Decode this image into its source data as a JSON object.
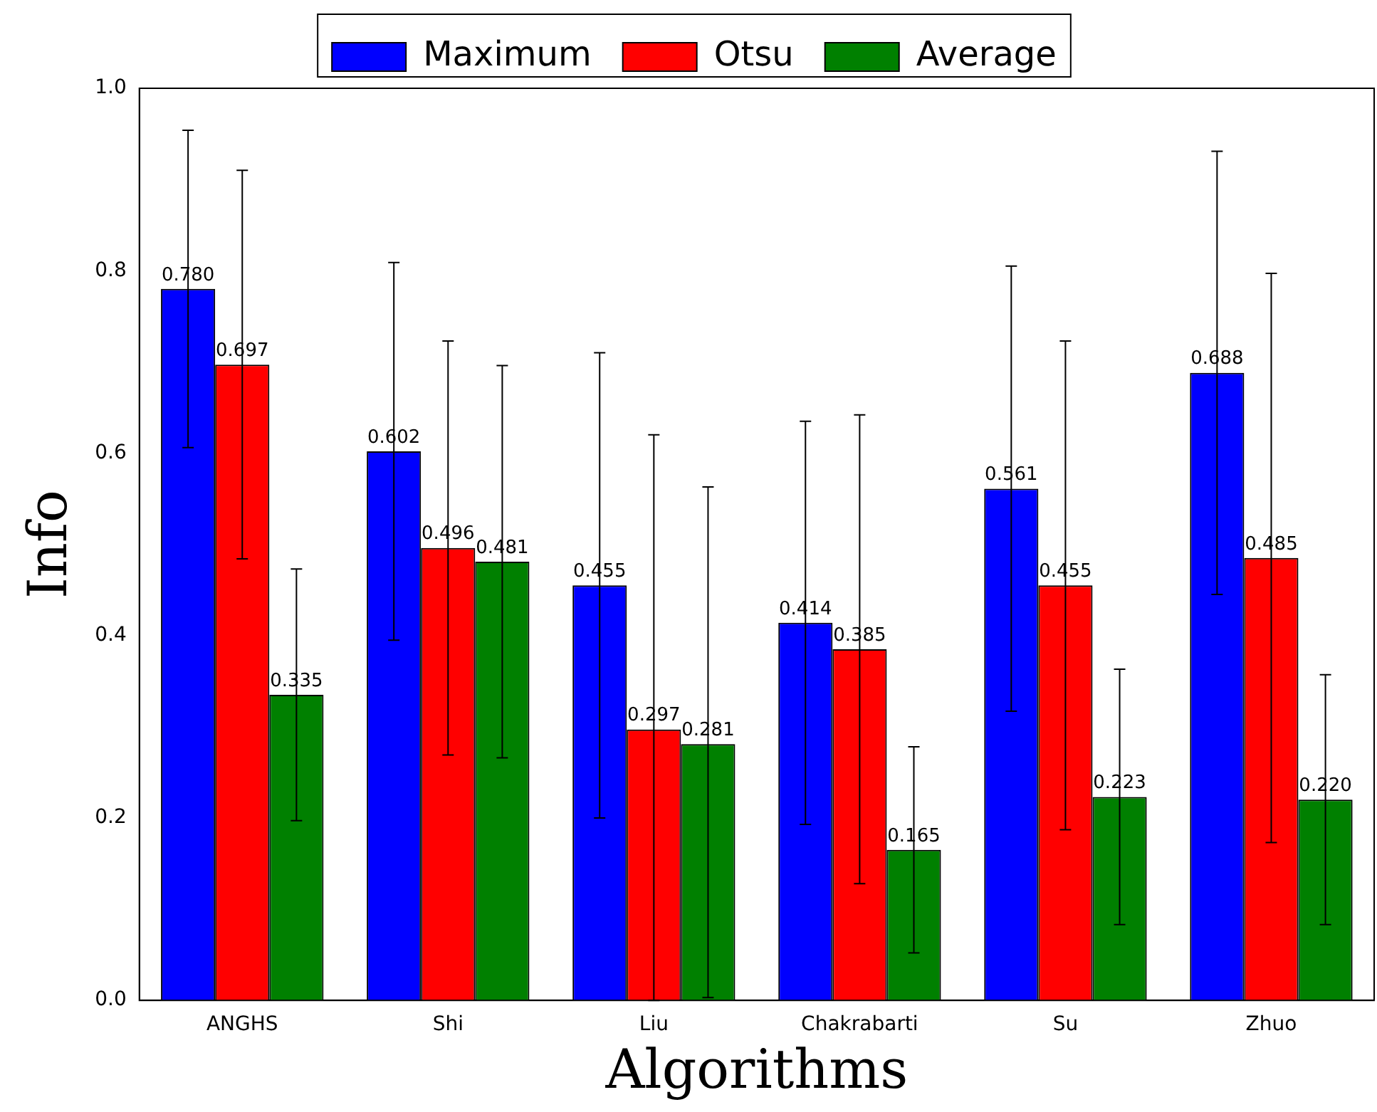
{
  "chart_data": {
    "type": "bar",
    "xlabel": "Algorithms",
    "ylabel": "Info",
    "categories": [
      "ANGHS",
      "Shi",
      "Liu",
      "Chakrabarti",
      "Su",
      "Zhuo"
    ],
    "series": [
      {
        "name": "Maximum",
        "color": "#0000ff",
        "values": [
          0.78,
          0.602,
          0.455,
          0.414,
          0.561,
          0.688
        ],
        "errors": [
          0.174,
          0.207,
          0.255,
          0.221,
          0.244,
          0.243
        ],
        "value_labels": [
          "0.780",
          "0.602",
          "0.455",
          "0.414",
          "0.561",
          "0.688"
        ]
      },
      {
        "name": "Otsu",
        "color": "#ff0000",
        "values": [
          0.697,
          0.496,
          0.297,
          0.385,
          0.455,
          0.485
        ],
        "errors": [
          0.213,
          0.227,
          [
            0,
            0.62
          ],
          0.257,
          0.268,
          0.312
        ],
        "value_labels": [
          "0.697",
          "0.496",
          "0.297",
          "0.385",
          "0.455",
          "0.485"
        ]
      },
      {
        "name": "Average",
        "color": "#008000",
        "values": [
          0.335,
          0.481,
          0.281,
          0.165,
          0.223,
          0.22
        ],
        "errors": [
          0.138,
          0.215,
          [
            0.003,
            0.563
          ],
          0.113,
          0.14,
          0.137
        ],
        "value_labels": [
          "0.335",
          "0.481",
          "0.281",
          "0.165",
          "0.223",
          "0.220"
        ]
      }
    ],
    "ylim": [
      0,
      1
    ],
    "yticks": [
      {
        "value": 0,
        "label": "0.0"
      },
      {
        "value": 0.2,
        "label": "0.2"
      },
      {
        "value": 0.4,
        "label": "0.4"
      },
      {
        "value": 0.6,
        "label": "0.6"
      },
      {
        "value": 0.8,
        "label": "0.8"
      },
      {
        "value": 1,
        "label": "1.0"
      }
    ],
    "grid": false,
    "legend": "top"
  }
}
